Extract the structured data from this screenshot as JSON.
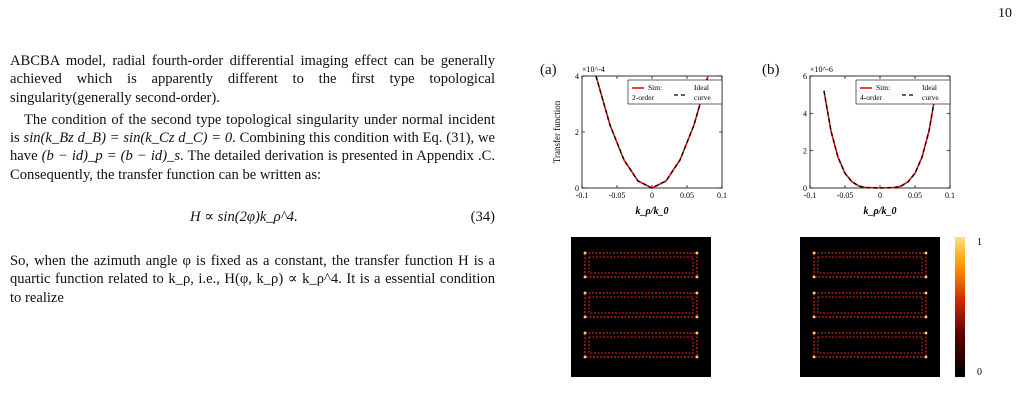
{
  "page_number": "10",
  "text": {
    "p1": "ABCBA model, radial fourth-order differential imaging effect can be generally achieved which is apparently different to the first type topological singularity(generally second-order).",
    "p2a": "The condition of the second type topological singularity under normal incident is ",
    "p2_cond": "sin(k_Bz d_B) = sin(k_Cz d_C) = 0",
    "p2b": ". Combining this condition with Eq. (31), we have ",
    "p2_rel": "(b − id)_p = (b − id)_s",
    "p2c": ". The detailed derivation is presented in Appendix .C. Consequently, the transfer function can be written as:",
    "equation": "H ∝ sin(2φ)k_ρ^4.",
    "eq_number": "(34)",
    "p3a": "So, when the azimuth angle φ is fixed as a constant, the transfer function H is a quartic function related to k_ρ, i.e., H(φ, k_ρ) ∝ k_ρ^4. It is a essential condition to realize"
  },
  "figure": {
    "panel_a_label": "(a)",
    "panel_b_label": "(b)",
    "colorbar_max": "1",
    "colorbar_min": "0",
    "colors": {
      "sim": "#e41010",
      "ideal": "#000000",
      "image_bg": "#000000",
      "pattern": "#d8281c"
    }
  },
  "chart_data": [
    {
      "type": "line",
      "panel": "(a)",
      "ylabel": "Transfer function",
      "xlabel": "k_ρ/k_0",
      "scale_label": "×10^-4",
      "xlim": [
        -0.1,
        0.1
      ],
      "ylim": [
        0,
        4
      ],
      "xticks": [
        "-0.1",
        "-0.05",
        "0",
        "0.05",
        "0.1"
      ],
      "yticks": [
        "0",
        "2",
        "4"
      ],
      "legend": {
        "placement": "top",
        "sim_label": "Sim:",
        "sim_label2": "2-order",
        "ideal_label": "Ideal",
        "ideal_label2": "curve"
      },
      "series": [
        {
          "name": "Sim: 2-order",
          "style": "solid-red",
          "x": [
            -0.08,
            -0.06,
            -0.04,
            -0.02,
            0,
            0.02,
            0.04,
            0.06,
            0.08
          ],
          "y": [
            4.0,
            2.25,
            1.0,
            0.25,
            0,
            0.25,
            1.0,
            2.25,
            4.0
          ]
        },
        {
          "name": "Ideal curve",
          "style": "dashed-black",
          "x": [
            -0.08,
            -0.06,
            -0.04,
            -0.02,
            0,
            0.02,
            0.04,
            0.06,
            0.08
          ],
          "y": [
            4.0,
            2.25,
            1.0,
            0.25,
            0,
            0.25,
            1.0,
            2.25,
            4.0
          ]
        }
      ]
    },
    {
      "type": "line",
      "panel": "(b)",
      "ylabel": "",
      "xlabel": "k_ρ/k_0",
      "scale_label": "×10^-6",
      "xlim": [
        -0.1,
        0.1
      ],
      "ylim": [
        0,
        6
      ],
      "xticks": [
        "-0.1",
        "-0.05",
        "0",
        "0.05",
        "0.1"
      ],
      "yticks": [
        "0",
        "2",
        "4",
        "6"
      ],
      "legend": {
        "placement": "top",
        "sim_label": "Sim:",
        "sim_label2": "4-order",
        "ideal_label": "Ideal",
        "ideal_label2": "curve"
      },
      "series": [
        {
          "name": "Sim: 4-order",
          "style": "solid-red",
          "x": [
            -0.08,
            -0.07,
            -0.06,
            -0.05,
            -0.04,
            -0.03,
            -0.02,
            0,
            0.02,
            0.03,
            0.04,
            0.05,
            0.06,
            0.07,
            0.08
          ],
          "y": [
            5.2,
            3.05,
            1.65,
            0.79,
            0.33,
            0.1,
            0.02,
            0,
            0.02,
            0.1,
            0.33,
            0.79,
            1.65,
            3.05,
            5.2
          ]
        },
        {
          "name": "Ideal curve",
          "style": "dashed-black",
          "x": [
            -0.08,
            -0.07,
            -0.06,
            -0.05,
            -0.04,
            -0.03,
            -0.02,
            0,
            0.02,
            0.03,
            0.04,
            0.05,
            0.06,
            0.07,
            0.08
          ],
          "y": [
            5.2,
            3.05,
            1.65,
            0.79,
            0.33,
            0.1,
            0.02,
            0,
            0.02,
            0.1,
            0.33,
            0.79,
            1.65,
            3.05,
            5.2
          ]
        }
      ]
    }
  ]
}
